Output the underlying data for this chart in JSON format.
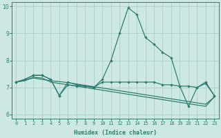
{
  "title": "",
  "xlabel": "Humidex (Indice chaleur)",
  "x": [
    0,
    1,
    2,
    3,
    4,
    5,
    6,
    7,
    8,
    9,
    10,
    11,
    12,
    13,
    14,
    15,
    16,
    17,
    18,
    19,
    20,
    21,
    22,
    23
  ],
  "line1": [
    7.2,
    7.3,
    7.45,
    7.45,
    7.3,
    6.7,
    7.2,
    7.1,
    7.05,
    7.0,
    7.3,
    8.0,
    9.0,
    9.95,
    9.7,
    8.85,
    8.6,
    8.3,
    8.1,
    7.05,
    7.05,
    7.0,
    7.15,
    6.7
  ],
  "line2": [
    7.2,
    7.3,
    7.45,
    7.45,
    7.3,
    6.7,
    7.1,
    7.05,
    7.05,
    7.0,
    7.2,
    7.2,
    7.2,
    7.2,
    7.2,
    7.2,
    7.2,
    7.1,
    7.1,
    7.05,
    6.3,
    7.0,
    7.2,
    6.7
  ],
  "line3": [
    7.2,
    7.25,
    7.38,
    7.35,
    7.2,
    7.15,
    7.1,
    7.05,
    7.0,
    6.95,
    6.9,
    6.85,
    6.8,
    6.75,
    6.7,
    6.65,
    6.6,
    6.55,
    6.5,
    6.45,
    6.4,
    6.35,
    6.3,
    6.65
  ],
  "line4": [
    7.2,
    7.27,
    7.35,
    7.3,
    7.25,
    7.22,
    7.18,
    7.13,
    7.08,
    7.03,
    6.98,
    6.93,
    6.88,
    6.83,
    6.78,
    6.73,
    6.68,
    6.63,
    6.58,
    6.53,
    6.48,
    6.43,
    6.38,
    6.65
  ],
  "line_color": "#2e7d6e",
  "bg_color": "#cde8e3",
  "grid_color": "#a8cfc8",
  "ylim": [
    5.85,
    10.15
  ],
  "xlim": [
    -0.5,
    23.5
  ],
  "yticks": [
    6,
    7,
    8,
    9,
    10
  ],
  "tick_fontsize": 5.0,
  "xlabel_fontsize": 6.0,
  "marker_size": 2.2,
  "linewidth": 0.9
}
